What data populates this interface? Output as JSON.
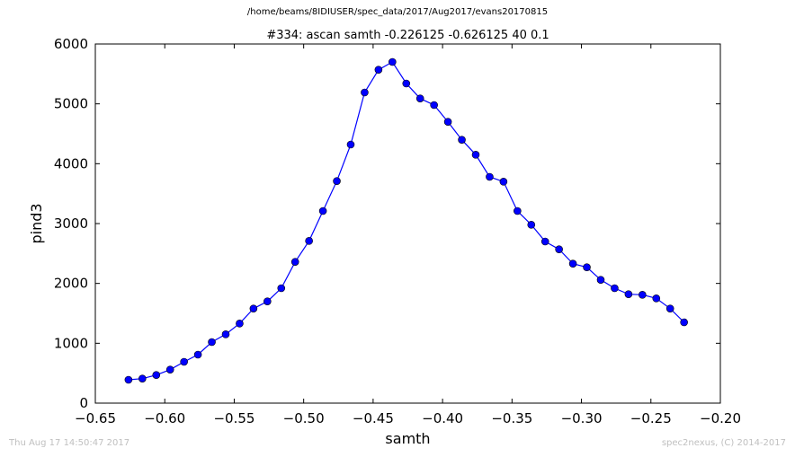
{
  "header": {
    "file_path": "/home/beams/8IDIUSER/spec_data/2017/Aug2017/evans20170815"
  },
  "footer": {
    "timestamp": "Thu Aug 17 14:50:47 2017",
    "credit": "spec2nexus, (C) 2014-2017"
  },
  "chart_data": {
    "type": "line",
    "title": "#334: ascan  samth -0.226125 -0.626125  40 0.1",
    "xlabel": "samth",
    "ylabel": "pind3",
    "xlim": [
      -0.65,
      -0.2
    ],
    "ylim": [
      0,
      6000
    ],
    "xticks": [
      -0.65,
      -0.6,
      -0.55,
      -0.5,
      -0.45,
      -0.4,
      -0.35,
      -0.3,
      -0.25,
      -0.2
    ],
    "xtick_labels": [
      "−0.65",
      "−0.60",
      "−0.55",
      "−0.50",
      "−0.45",
      "−0.40",
      "−0.35",
      "−0.30",
      "−0.25",
      "−0.20"
    ],
    "yticks": [
      0,
      1000,
      2000,
      3000,
      4000,
      5000,
      6000
    ],
    "ytick_labels": [
      "0",
      "1000",
      "2000",
      "3000",
      "4000",
      "5000",
      "6000"
    ],
    "grid": false,
    "line_color": "#0000ff",
    "marker": "circle",
    "series": [
      {
        "x": [
          -0.626125,
          -0.616125,
          -0.606125,
          -0.596125,
          -0.586125,
          -0.576125,
          -0.566125,
          -0.556125,
          -0.546125,
          -0.536125,
          -0.526125,
          -0.516125,
          -0.506125,
          -0.496125,
          -0.486125,
          -0.476125,
          -0.466125,
          -0.456125,
          -0.446125,
          -0.436125,
          -0.426125,
          -0.416125,
          -0.406125,
          -0.396125,
          -0.386125,
          -0.376125,
          -0.366125,
          -0.356125,
          -0.346125,
          -0.336125,
          -0.326125,
          -0.316125,
          -0.306125,
          -0.296125,
          -0.286125,
          -0.276125,
          -0.266125,
          -0.256125,
          -0.246125,
          -0.236125,
          -0.226125
        ],
        "y": [
          390,
          410,
          470,
          560,
          690,
          810,
          1020,
          1150,
          1330,
          1580,
          1700,
          1920,
          2360,
          2710,
          3210,
          3710,
          4320,
          5190,
          5570,
          5700,
          5340,
          5090,
          4980,
          4700,
          4400,
          4150,
          3780,
          3700,
          3210,
          2980,
          2700,
          2570,
          2330,
          2270,
          2060,
          1920,
          1820,
          1810,
          1750,
          1580,
          1350
        ]
      }
    ]
  }
}
